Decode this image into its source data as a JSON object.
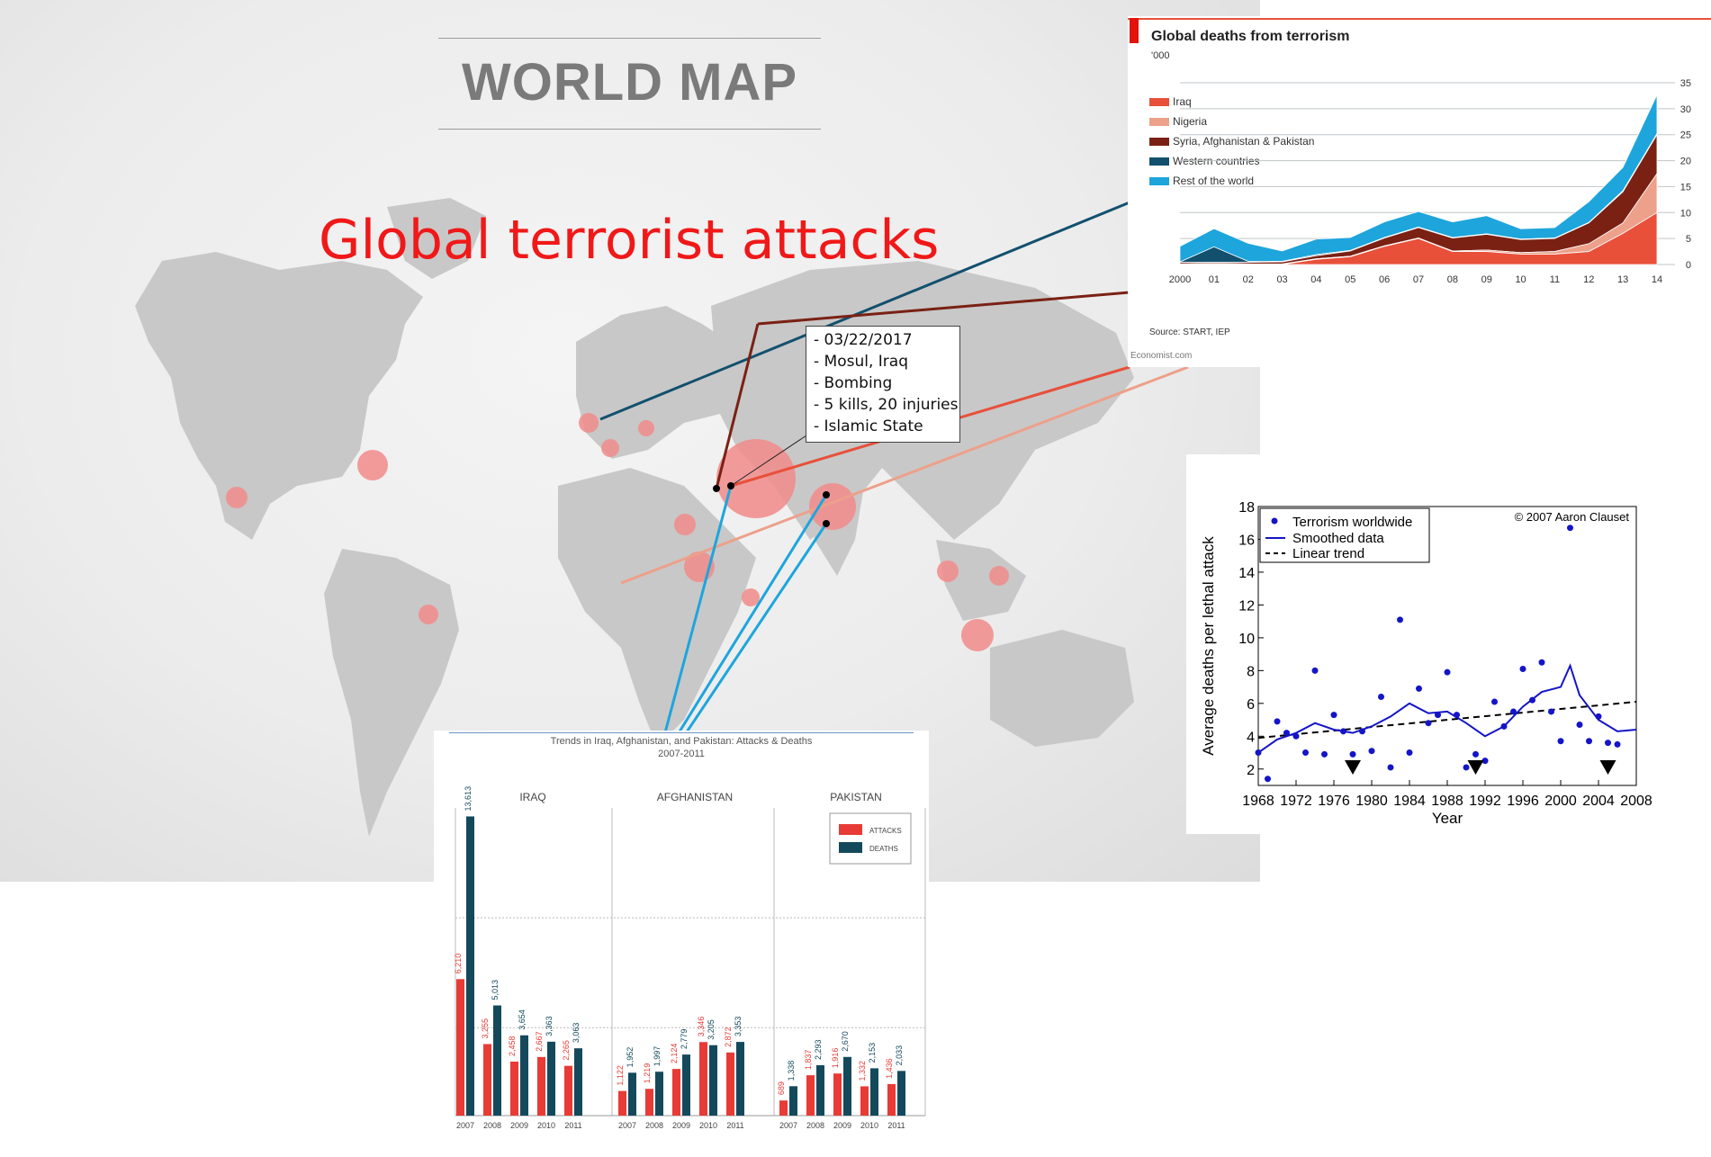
{
  "slide": {
    "title": "WORLD MAP",
    "headline": "Global terrorist attacks"
  },
  "callout": {
    "lines": [
      "- 03/22/2017",
      "- Mosul, Iraq",
      "- Bombing",
      "- 5 kills, 20 injuries",
      "- Islamic State"
    ]
  },
  "map": {
    "land_color": "#c8c8c8",
    "hotspot_color": "#f28b8b"
  },
  "economist_chart": {
    "title": "Global deaths from terrorism",
    "unit": "'000",
    "source": "Source: START, IEP",
    "credit": "Economist.com",
    "legend": [
      {
        "label": "Iraq",
        "color": "#e8503a"
      },
      {
        "label": "Nigeria",
        "color": "#eda08a"
      },
      {
        "label": "Syria, Afghanistan & Pakistan",
        "color": "#7a2114"
      },
      {
        "label": "Western countries",
        "color": "#12506e"
      },
      {
        "label": "Rest of the world",
        "color": "#1ea5dc"
      }
    ],
    "x_labels": [
      "2000",
      "01",
      "02",
      "03",
      "04",
      "05",
      "06",
      "07",
      "08",
      "09",
      "10",
      "11",
      "12",
      "13",
      "14"
    ],
    "y_labels": [
      "35",
      "30",
      "25",
      "20",
      "15",
      "10",
      "5",
      "0"
    ]
  },
  "chart_data": [
    {
      "type": "area",
      "title": "Global deaths from terrorism",
      "ylabel": "'000",
      "x": [
        2000,
        2001,
        2002,
        2003,
        2004,
        2005,
        2006,
        2007,
        2008,
        2009,
        2010,
        2011,
        2012,
        2013,
        2014
      ],
      "ylim": [
        0,
        35
      ],
      "series": [
        {
          "name": "Iraq",
          "values": [
            0,
            0,
            0,
            0,
            1.0,
            1.5,
            3.5,
            5.0,
            2.5,
            2.5,
            2.0,
            2.0,
            2.5,
            6.0,
            10.0
          ]
        },
        {
          "name": "Nigeria",
          "values": [
            0.1,
            0.2,
            0.1,
            0.1,
            0.1,
            0.1,
            0.1,
            0.1,
            0.1,
            0.3,
            0.3,
            0.5,
            1.5,
            2.0,
            7.5
          ]
        },
        {
          "name": "Syria, Afghanistan & Pakistan",
          "values": [
            0.3,
            0.2,
            0.3,
            0.4,
            0.6,
            1.0,
            1.5,
            2.0,
            2.5,
            3.0,
            2.5,
            2.5,
            4.0,
            6.0,
            7.5
          ]
        },
        {
          "name": "Western countries",
          "values": [
            0.1,
            3.0,
            0.2,
            0.1,
            0.2,
            0.1,
            0.1,
            0.1,
            0.1,
            0.1,
            0.1,
            0.1,
            0.1,
            0.2,
            0.2
          ]
        },
        {
          "name": "Rest of the world",
          "values": [
            3.0,
            3.5,
            3.5,
            2.0,
            3.0,
            2.5,
            3.0,
            3.0,
            3.0,
            3.5,
            2.0,
            2.0,
            4.0,
            4.5,
            7.5
          ]
        }
      ]
    },
    {
      "type": "scatter",
      "xlabel": "Year",
      "ylabel": "Average deaths per lethal attack",
      "credit": "© 2007 Aaron Clauset",
      "xlim": [
        1968,
        2008
      ],
      "ylim": [
        1,
        18
      ],
      "x_ticks": [
        "1968",
        "1972",
        "1976",
        "1980",
        "1984",
        "1988",
        "1992",
        "1996",
        "2000",
        "2004",
        "2008"
      ],
      "y_ticks": [
        "18",
        "16",
        "14",
        "12",
        "10",
        "8",
        "6",
        "4",
        "2"
      ],
      "legend": [
        "Terrorism worldwide",
        "Smoothed data",
        "Linear trend"
      ],
      "series": [
        {
          "name": "Terrorism worldwide",
          "x": [
            1968,
            1969,
            1970,
            1971,
            1972,
            1973,
            1974,
            1975,
            1976,
            1977,
            1978,
            1979,
            1980,
            1981,
            1982,
            1983,
            1984,
            1985,
            1986,
            1987,
            1988,
            1989,
            1990,
            1991,
            1992,
            1993,
            1994,
            1995,
            1996,
            1997,
            1998,
            1999,
            2000,
            2001,
            2002,
            2003,
            2004,
            2005,
            2006
          ],
          "y": [
            3.0,
            1.4,
            4.9,
            4.2,
            4.0,
            3.0,
            8.0,
            2.9,
            5.3,
            4.3,
            2.9,
            4.3,
            3.1,
            6.4,
            2.1,
            11.1,
            3.0,
            6.9,
            4.8,
            5.3,
            7.9,
            5.3,
            2.1,
            2.9,
            2.5,
            6.1,
            4.6,
            5.5,
            8.1,
            6.2,
            8.5,
            5.5,
            3.7,
            16.7,
            4.7,
            3.7,
            5.2,
            3.6,
            3.5
          ]
        },
        {
          "name": "Smoothed data",
          "x": [
            1968,
            1970,
            1972,
            1974,
            1976,
            1978,
            1980,
            1982,
            1984,
            1986,
            1988,
            1990,
            1992,
            1994,
            1996,
            1998,
            2000,
            2001,
            2002,
            2004,
            2006,
            2008
          ],
          "y": [
            3.0,
            3.8,
            4.2,
            4.8,
            4.4,
            4.2,
            4.6,
            5.2,
            6.0,
            5.4,
            5.5,
            4.8,
            4.0,
            4.6,
            5.8,
            6.7,
            7.0,
            8.3,
            6.5,
            5.0,
            4.3,
            4.4
          ]
        },
        {
          "name": "Linear trend",
          "x": [
            1968,
            2008
          ],
          "y": [
            3.9,
            6.1
          ]
        }
      ],
      "markers_years": [
        1978,
        1991,
        2005
      ]
    },
    {
      "type": "bar",
      "title": "Trends in Iraq, Afghanistan, and Pakistan: Attacks & Deaths 2007-2011",
      "groups": [
        "IRAQ",
        "AFGHANISTAN",
        "PAKISTAN"
      ],
      "categories": [
        "2007",
        "2008",
        "2009",
        "2010",
        "2011"
      ],
      "legend": [
        "ATTACKS",
        "DEATHS"
      ],
      "ylim": [
        0,
        14000
      ],
      "series": [
        {
          "group": "IRAQ",
          "name": "ATTACKS",
          "values": [
            6210,
            3255,
            2458,
            2667,
            2265
          ]
        },
        {
          "group": "IRAQ",
          "name": "DEATHS",
          "values": [
            13613,
            5013,
            3654,
            3363,
            3063
          ]
        },
        {
          "group": "AFGHANISTAN",
          "name": "ATTACKS",
          "values": [
            1122,
            1219,
            2124,
            3346,
            2872
          ]
        },
        {
          "group": "AFGHANISTAN",
          "name": "DEATHS",
          "values": [
            1952,
            1997,
            2779,
            3205,
            3353
          ]
        },
        {
          "group": "PAKISTAN",
          "name": "ATTACKS",
          "values": [
            689,
            1837,
            1916,
            1332,
            1436
          ]
        },
        {
          "group": "PAKISTAN",
          "name": "DEATHS",
          "values": [
            1338,
            2293,
            2670,
            2153,
            2033
          ]
        }
      ]
    }
  ],
  "bar_panel": {
    "title_line1": "Trends in Iraq, Afghanistan, and Pakistan: Attacks & Deaths",
    "title_line2": "2007-2011",
    "attack_color": "#e83b36",
    "death_color": "#14495c"
  }
}
